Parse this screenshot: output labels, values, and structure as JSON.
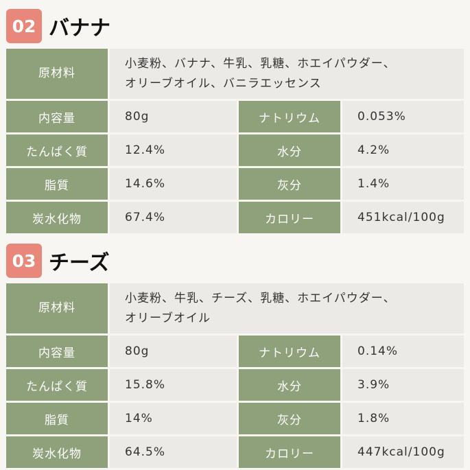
{
  "sections": [
    {
      "number": "02",
      "title": "バナナ",
      "ingredients_label": "原材料",
      "ingredients_line1": "小麦粉、バナナ、牛乳、乳糖、ホエイパウダー、",
      "ingredients_line2": "オリーブオイル、バニラエッセンス",
      "rows": [
        [
          "内容量",
          "80g",
          "ナトリウム",
          "0.053%"
        ],
        [
          "たんぱく質",
          "12.4%",
          "水分",
          "4.2%"
        ],
        [
          "脂質",
          "14.6%",
          "灰分",
          "1.4%"
        ],
        [
          "炭水化物",
          "67.4%",
          "カロリー",
          "451kcal/100g"
        ]
      ]
    },
    {
      "number": "03",
      "title": "チーズ",
      "ingredients_label": "原材料",
      "ingredients_line1": "小麦粉、牛乳、チーズ、乳糖、ホエイパウダー、",
      "ingredients_line2": "オリーブオイル",
      "rows": [
        [
          "内容量",
          "80g",
          "ナトリウム",
          "0.14%"
        ],
        [
          "たんぱく質",
          "15.8%",
          "水分",
          "3.9%"
        ],
        [
          "脂質",
          "14%",
          "灰分",
          "1.8%"
        ],
        [
          "炭水化物",
          "64.5%",
          "カロリー",
          "447kcal/100g"
        ]
      ]
    }
  ],
  "colors": {
    "badge": "#e8887a",
    "label_cell": "#8fa17b",
    "value_cell": "#ebeae6",
    "background": "#f7f6f2"
  }
}
